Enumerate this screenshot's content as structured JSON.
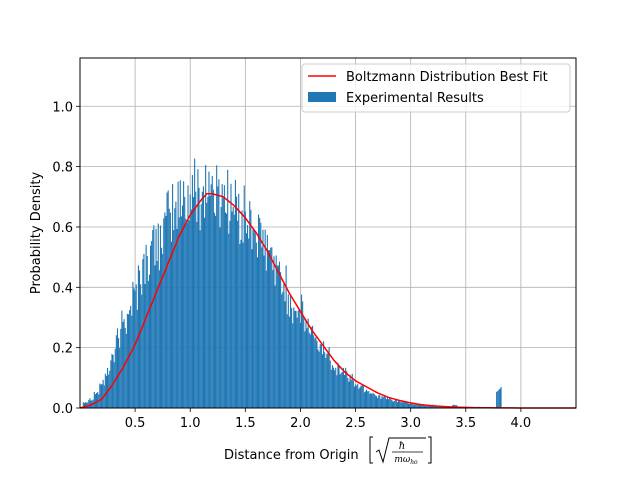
{
  "chart_data": {
    "type": "bar",
    "xlabel": "Distance from Origin",
    "ylabel": "Probability Density",
    "xlim": [
      0.0,
      4.5
    ],
    "ylim": [
      0.0,
      1.16
    ],
    "x_ticks": [
      "0.5",
      "1.0",
      "1.5",
      "2.0",
      "2.5",
      "3.0",
      "3.5",
      "4.0"
    ],
    "y_ticks": [
      "0.0",
      "0.2",
      "0.4",
      "0.6",
      "0.8",
      "1.0"
    ],
    "grid": true,
    "legend_position": "top-right",
    "histogram": {
      "name": "Experimental Results",
      "color": "#1f77b4",
      "bin_centers": [
        0.05,
        0.1,
        0.15,
        0.2,
        0.25,
        0.3,
        0.35,
        0.4,
        0.45,
        0.5,
        0.55,
        0.6,
        0.65,
        0.7,
        0.75,
        0.8,
        0.85,
        0.9,
        0.95,
        1.0,
        1.05,
        1.1,
        1.15,
        1.2,
        1.25,
        1.3,
        1.35,
        1.4,
        1.45,
        1.5,
        1.55,
        1.6,
        1.65,
        1.7,
        1.75,
        1.8,
        1.85,
        1.9,
        1.95,
        2.0,
        2.05,
        2.1,
        2.15,
        2.2,
        2.25,
        2.3,
        2.35,
        2.4,
        2.45,
        2.5,
        2.55,
        2.6,
        2.65,
        2.7,
        2.75,
        2.8,
        2.85,
        2.9,
        2.95,
        3.0,
        3.05,
        3.1,
        3.15,
        3.2,
        3.25,
        3.3,
        3.35,
        3.4,
        3.45,
        3.5,
        3.55,
        3.6,
        3.65,
        3.7,
        3.75,
        3.8,
        3.85,
        3.9
      ],
      "values": [
        0.02,
        0.03,
        0.05,
        0.08,
        0.12,
        0.17,
        0.23,
        0.29,
        0.34,
        0.38,
        0.44,
        0.48,
        0.52,
        0.55,
        0.58,
        0.62,
        0.65,
        0.67,
        0.7,
        0.69,
        0.72,
        0.71,
        0.74,
        0.72,
        0.7,
        0.72,
        0.69,
        0.66,
        0.64,
        0.63,
        0.6,
        0.58,
        0.54,
        0.52,
        0.49,
        0.44,
        0.41,
        0.36,
        0.33,
        0.32,
        0.28,
        0.25,
        0.21,
        0.2,
        0.18,
        0.15,
        0.13,
        0.12,
        0.1,
        0.08,
        0.07,
        0.06,
        0.05,
        0.04,
        0.035,
        0.03,
        0.025,
        0.02,
        0.02,
        0.015,
        0.012,
        0.01,
        0.008,
        0.01,
        0.006,
        0.005,
        0.004,
        0.01,
        0.003,
        0.002,
        0.002,
        0.004,
        0.001,
        0.002,
        0.001,
        0.06,
        0.001,
        0.001
      ]
    },
    "fit_curve": {
      "name": "Boltzmann Distribution Best Fit",
      "color": "#ff0000",
      "x": [
        0.0,
        0.1,
        0.2,
        0.3,
        0.4,
        0.5,
        0.6,
        0.7,
        0.8,
        0.9,
        1.0,
        1.1,
        1.15,
        1.2,
        1.3,
        1.4,
        1.5,
        1.6,
        1.7,
        1.8,
        1.9,
        2.0,
        2.1,
        2.2,
        2.3,
        2.4,
        2.5,
        2.6,
        2.7,
        2.8,
        2.9,
        3.0,
        3.1,
        3.2,
        3.3,
        3.4,
        3.5,
        3.6,
        3.7,
        3.8,
        3.9,
        4.0,
        4.2,
        4.5
      ],
      "y": [
        0.0,
        0.01,
        0.03,
        0.08,
        0.14,
        0.21,
        0.3,
        0.39,
        0.48,
        0.57,
        0.64,
        0.69,
        0.71,
        0.71,
        0.7,
        0.67,
        0.63,
        0.58,
        0.52,
        0.45,
        0.38,
        0.32,
        0.26,
        0.21,
        0.16,
        0.12,
        0.09,
        0.07,
        0.05,
        0.035,
        0.025,
        0.017,
        0.011,
        0.007,
        0.005,
        0.003,
        0.002,
        0.001,
        0.0008,
        0.0005,
        0.0003,
        0.0002,
        0.0001,
        0.0
      ]
    }
  }
}
